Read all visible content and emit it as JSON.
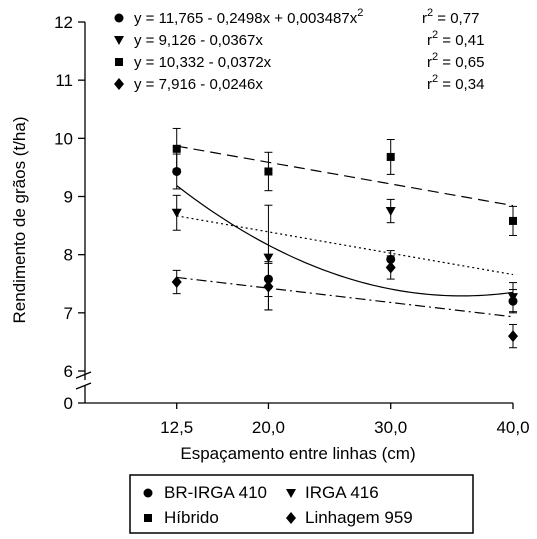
{
  "chart_data": {
    "type": "scatter",
    "xlabel": "Espaçamento entre linhas (cm)",
    "ylabel": "Rendimento de grãos (t/ha)",
    "x_ticks": [
      "12,5",
      "20,0",
      "30,0",
      "40,0"
    ],
    "x": [
      12.5,
      20.0,
      30.0,
      40.0
    ],
    "xlim": [
      5,
      40
    ],
    "y_ticks_upper": [
      "6",
      "7",
      "8",
      "9",
      "10",
      "11",
      "12"
    ],
    "y_tick_lower": "0",
    "ylim": [
      6,
      12
    ],
    "y_axis_break": true,
    "grid": false,
    "legend_position": "bottom",
    "series": [
      {
        "name": "BR-IRGA 410",
        "marker": "circle",
        "line_style": "solid",
        "values": [
          9.43,
          7.58,
          7.92,
          7.2
        ],
        "error": [
          0.3,
          0.3,
          0.15,
          0.2
        ],
        "equation": "y = 11,765 - 0,2498x + 0,003487x",
        "equation_exp": "2",
        "r2_text": "r",
        "r2_exp": "2",
        "r2_value": " = 0,77",
        "fit": {
          "type": "quadratic",
          "a": 11.765,
          "b": -0.2498,
          "c": 0.003487
        }
      },
      {
        "name": "IRGA 416",
        "marker": "triangle-down",
        "line_style": "dotted",
        "values": [
          8.72,
          7.95,
          8.75,
          7.27
        ],
        "error": [
          0.3,
          0.9,
          0.2,
          0.25
        ],
        "equation": "y = 9,126 - 0,0367x",
        "r2_text": "r",
        "r2_exp": "2",
        "r2_value": " = 0,41",
        "fit": {
          "type": "linear",
          "a": 9.126,
          "b": -0.0367
        }
      },
      {
        "name": "Híbrido",
        "marker": "square",
        "line_style": "dashed",
        "values": [
          9.82,
          9.43,
          9.68,
          8.58
        ],
        "error": [
          0.35,
          0.33,
          0.3,
          0.25
        ],
        "equation": "y = 10,332 - 0,0372x",
        "r2_text": "r",
        "r2_exp": "2",
        "r2_value": " = 0,65",
        "fit": {
          "type": "linear",
          "a": 10.332,
          "b": -0.0372
        }
      },
      {
        "name": "Linhagem 959",
        "marker": "diamond",
        "line_style": "dash-dot",
        "values": [
          7.53,
          7.45,
          7.78,
          6.6
        ],
        "error": [
          0.2,
          0.4,
          0.2,
          0.2
        ],
        "equation": "y = 7,916 - 0,0246x",
        "r2_text": "r",
        "r2_exp": "2",
        "r2_value": " = 0,34",
        "fit": {
          "type": "linear",
          "a": 7.916,
          "b": -0.0246
        }
      }
    ]
  }
}
